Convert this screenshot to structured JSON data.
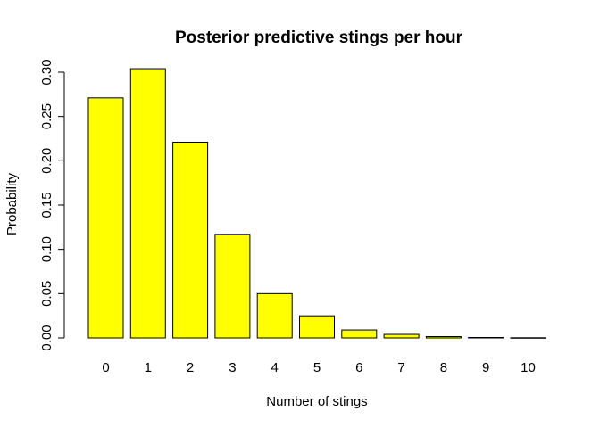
{
  "chart_data": {
    "type": "bar",
    "title": "Posterior predictive stings per hour",
    "xlabel": "Number of stings",
    "ylabel": "Probability",
    "categories": [
      "0",
      "1",
      "2",
      "3",
      "4",
      "5",
      "6",
      "7",
      "8",
      "9",
      "10"
    ],
    "values": [
      0.271,
      0.304,
      0.221,
      0.117,
      0.05,
      0.025,
      0.009,
      0.004,
      0.0015,
      0.0005,
      0.0002
    ],
    "ylim": [
      0,
      0.3
    ],
    "yticks": [
      0.0,
      0.05,
      0.1,
      0.15,
      0.2,
      0.25,
      0.3
    ],
    "ytick_labels": [
      "0.00",
      "0.05",
      "0.10",
      "0.15",
      "0.20",
      "0.25",
      "0.30"
    ],
    "bar_color": "#ffff00",
    "border_color": "#000000",
    "grid": false,
    "legend": "none"
  }
}
